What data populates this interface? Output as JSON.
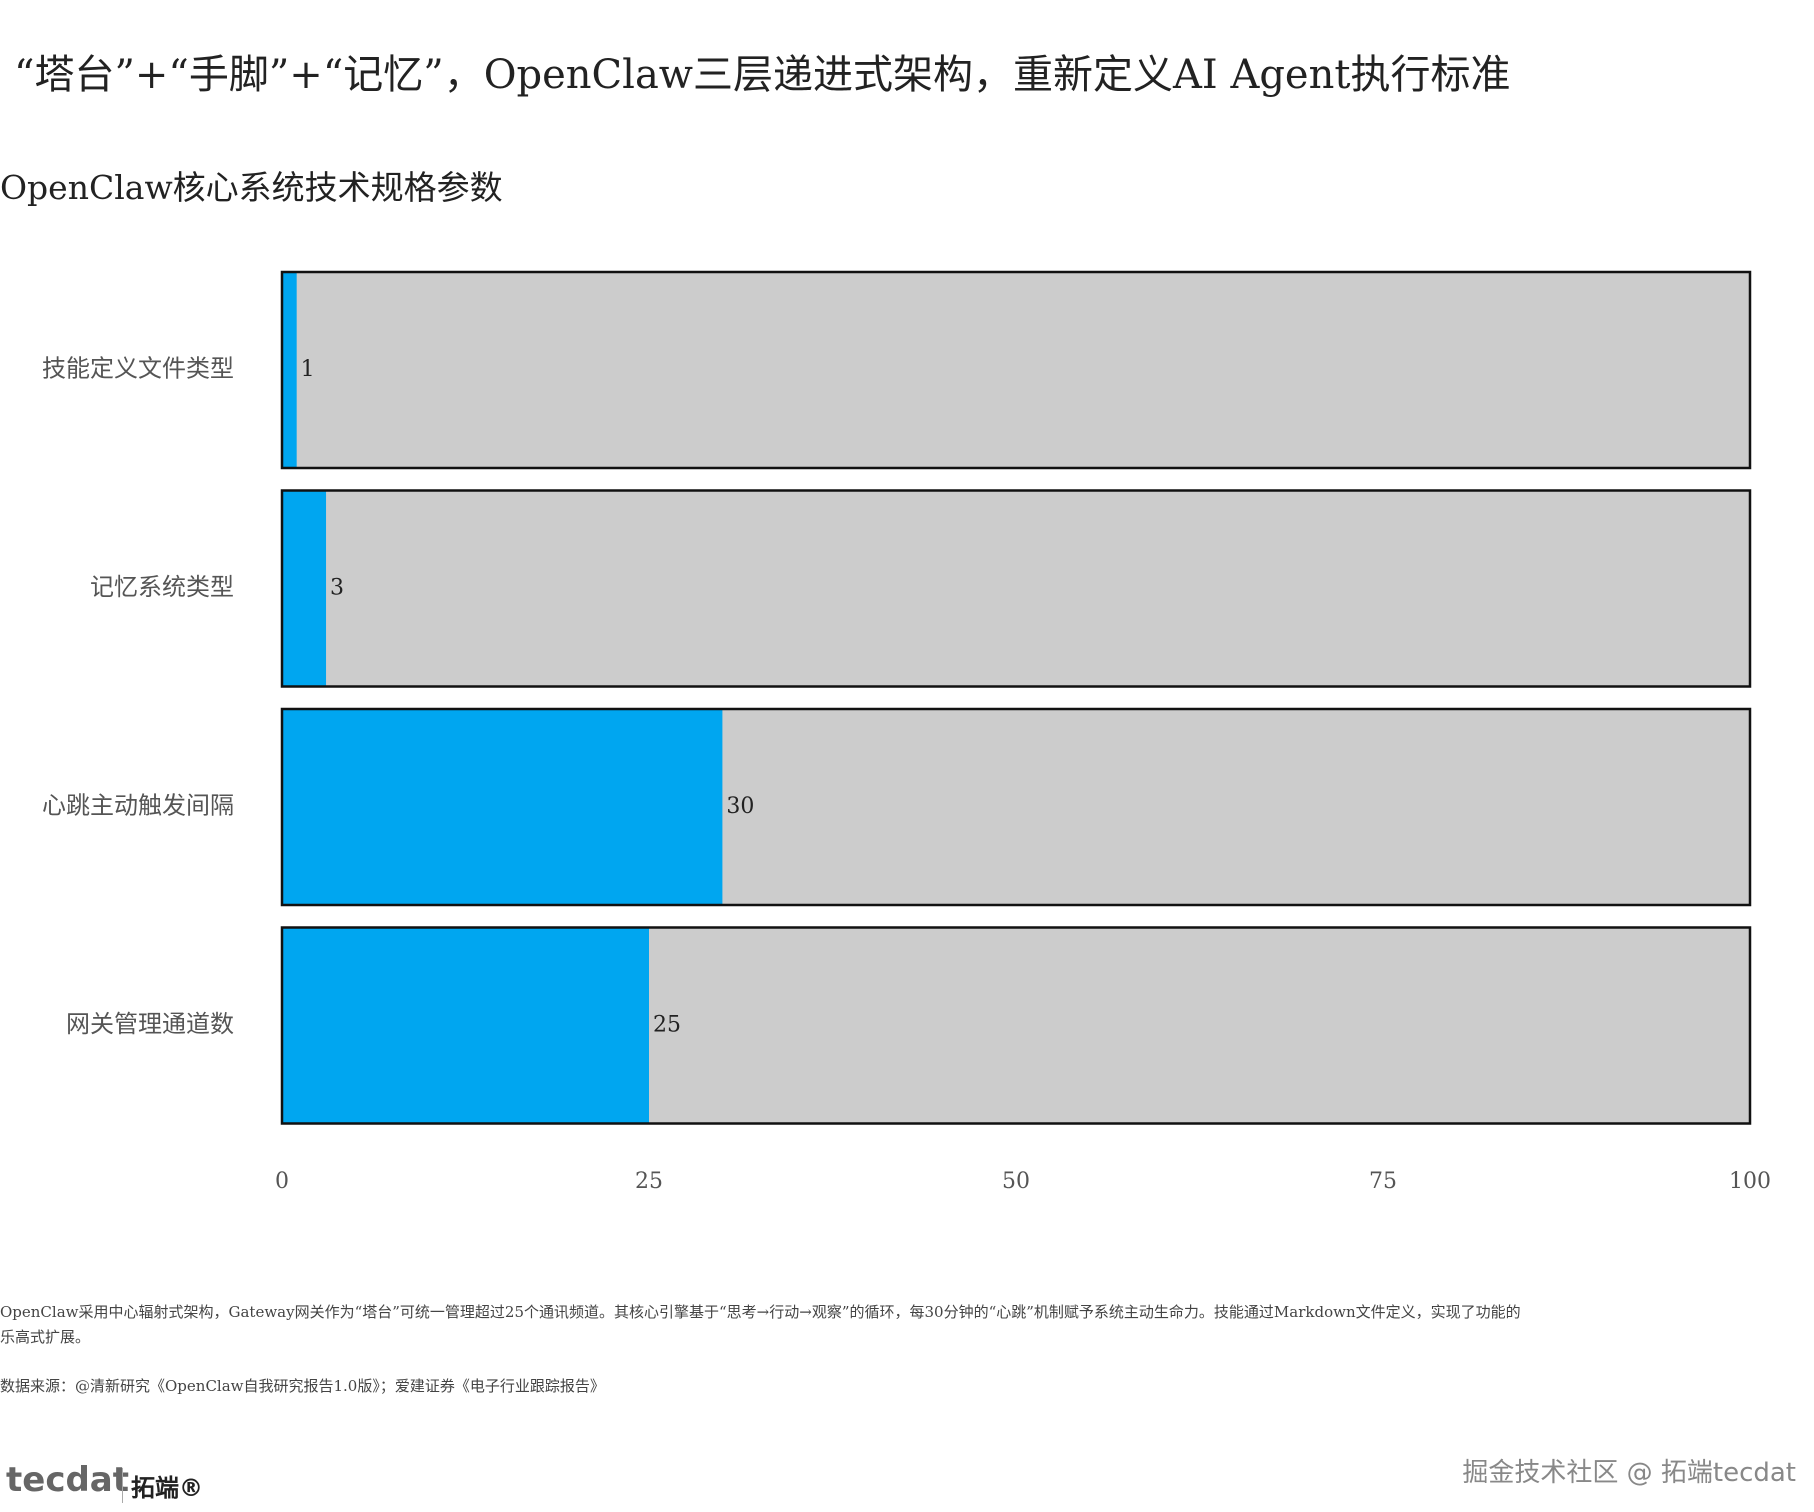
{
  "chart_data": {
    "type": "hbar",
    "title": "“塔台”+“手脚”+“记忆”，OpenClaw三层递进式架构，重新定义AI Agent执行标准",
    "subtitle": "OpenClaw核心系统技术规格参数",
    "categories": [
      "技能定义文件类型",
      "记忆系统类型",
      "心跳主动触发间隔",
      "网关管理通道数"
    ],
    "values": [
      1,
      3,
      30,
      25
    ],
    "color": "#00a6f0",
    "track_color": "#cccccc",
    "xlim": [
      0,
      100
    ],
    "xticks": [
      0,
      25,
      50,
      75,
      100
    ]
  },
  "footer": {
    "note": "OpenClaw采用中心辐射式架构，Gateway网关作为“塔台”可统一管理超过25个通讯频道。其核心引擎基于“思考→行动→观察”的循环，每30分钟的“心跳”机制赋予系统主动生命力。技能通过Markdown文件定义，实现了功能的乐高式扩展。",
    "source": "数据来源：@清新研究《OpenClaw自我研究报告1.0版》；爱建证券《电子行业跟踪报告》",
    "logo_left": "tecdat",
    "logo_right": "拓端®",
    "watermark": "掘金技术社区 @ 拓端tecdat"
  }
}
